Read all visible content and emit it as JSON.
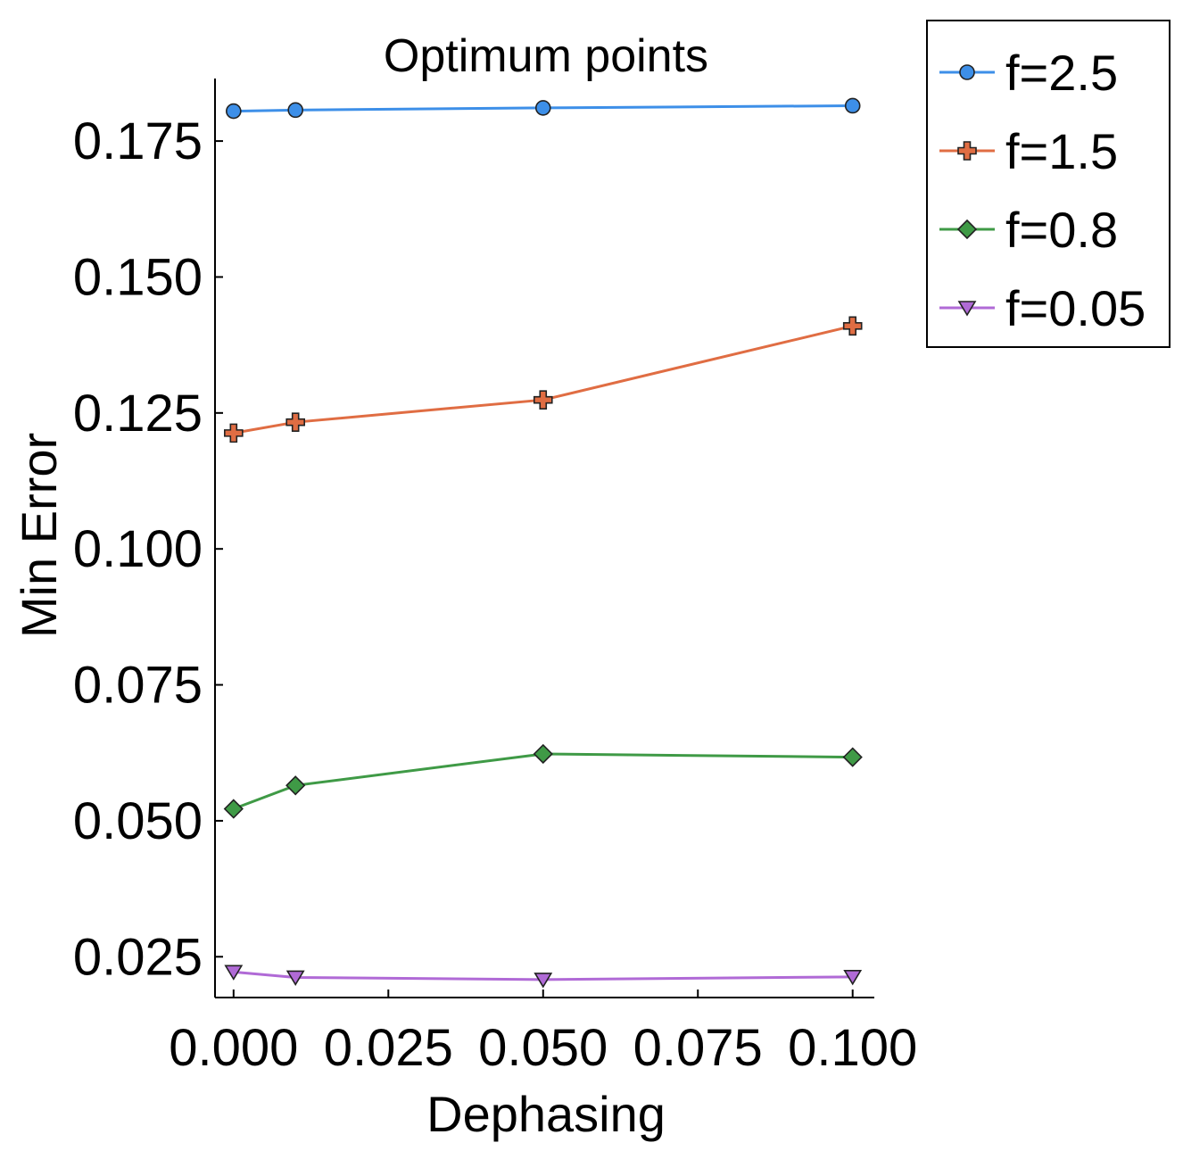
{
  "chart_data": {
    "type": "line",
    "title": "Optimum points",
    "xlabel": "Dephasing",
    "ylabel": "Min Error",
    "xlim": [
      -0.003,
      0.1035
    ],
    "ylim": [
      0.0175,
      0.1865
    ],
    "xticks": [
      0.0,
      0.025,
      0.05,
      0.075,
      0.1
    ],
    "xtick_labels": [
      "0.000",
      "0.025",
      "0.050",
      "0.075",
      "0.100"
    ],
    "yticks": [
      0.025,
      0.05,
      0.075,
      0.1,
      0.125,
      0.15,
      0.175
    ],
    "ytick_labels": [
      "0.025",
      "0.050",
      "0.075",
      "0.100",
      "0.125",
      "0.150",
      "0.175"
    ],
    "grid": false,
    "legend_position": "outside-top-right",
    "x": [
      0.0,
      0.01,
      0.05,
      0.1
    ],
    "series": [
      {
        "name": "f=2.5",
        "marker": "circle",
        "color": "#3d8fe8",
        "values": [
          0.1805,
          0.1807,
          0.1811,
          0.1815
        ]
      },
      {
        "name": "f=1.5",
        "marker": "plus",
        "color": "#e06d43",
        "values": [
          0.1213,
          0.1233,
          0.1274,
          0.141
        ]
      },
      {
        "name": "f=0.8",
        "marker": "diamond",
        "color": "#3f9a46",
        "values": [
          0.0522,
          0.0565,
          0.0623,
          0.0617
        ]
      },
      {
        "name": "f=0.05",
        "marker": "triangle-down",
        "color": "#b06ad6",
        "values": [
          0.0222,
          0.0212,
          0.0208,
          0.0213
        ]
      }
    ]
  }
}
